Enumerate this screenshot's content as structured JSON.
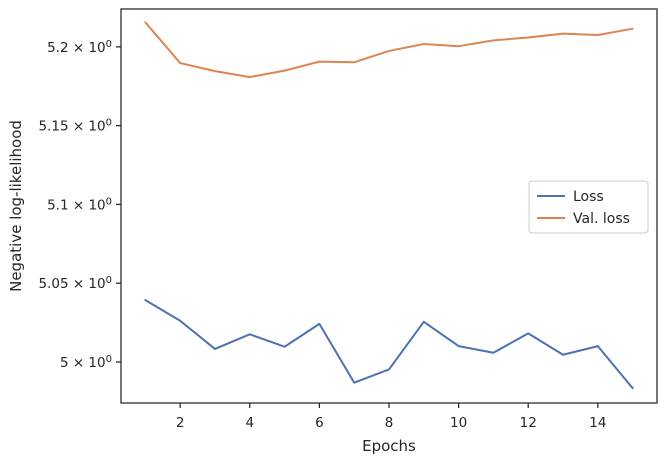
{
  "chart_data": {
    "type": "line",
    "x": [
      1,
      2,
      3,
      4,
      5,
      6,
      7,
      8,
      9,
      10,
      11,
      12,
      13,
      14,
      15
    ],
    "series": [
      {
        "name": "Loss",
        "color": "#4c72b0",
        "values": [
          5.0393,
          5.0262,
          5.0083,
          5.0176,
          5.0097,
          5.0242,
          4.9869,
          4.9953,
          5.0255,
          5.0101,
          5.0059,
          5.0182,
          5.0046,
          5.0101,
          4.9834
        ]
      },
      {
        "name": "Val. loss",
        "color": "#dd8452",
        "values": [
          5.2155,
          5.1897,
          5.1846,
          5.1808,
          5.1849,
          5.1906,
          5.1902,
          5.1974,
          5.2018,
          5.2004,
          5.2041,
          5.2059,
          5.2084,
          5.2075,
          5.2115
        ]
      }
    ],
    "xlabel": "Epochs",
    "ylabel": "Negative log-likelihood",
    "xlim": [
      0.3,
      15.7
    ],
    "ylim": [
      4.974,
      5.224
    ],
    "xticks": [
      2,
      4,
      6,
      8,
      10,
      12,
      14
    ],
    "xtick_labels": [
      "2",
      "4",
      "6",
      "8",
      "10",
      "12",
      "14"
    ],
    "yticks": [
      5.0,
      5.05,
      5.1,
      5.15,
      5.2
    ],
    "ytick_labels": [
      {
        "mantissa": "5",
        "base": "10",
        "exp": "0"
      },
      {
        "mantissa": "5.05",
        "base": "10",
        "exp": "0"
      },
      {
        "mantissa": "5.1",
        "base": "10",
        "exp": "0"
      },
      {
        "mantissa": "5.15",
        "base": "10",
        "exp": "0"
      },
      {
        "mantissa": "5.2",
        "base": "10",
        "exp": "0"
      }
    ],
    "grid": false,
    "legend_position": "center-right"
  }
}
